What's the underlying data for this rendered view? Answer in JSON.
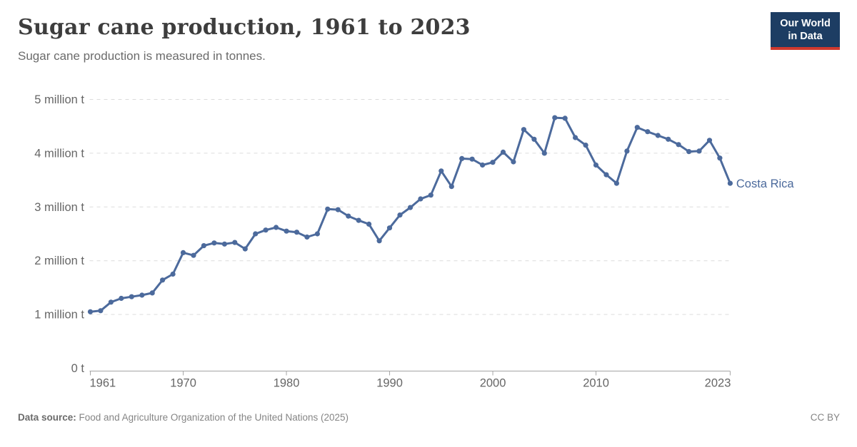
{
  "header": {
    "title": "Sugar cane production, 1961 to 2023",
    "subtitle": "Sugar cane production is measured in tonnes."
  },
  "logo": {
    "line1": "Our World",
    "line2": "in Data"
  },
  "footer": {
    "source_label": "Data source:",
    "source_text": " Food and Agriculture Organization of the United Nations (2025)",
    "license": "CC BY"
  },
  "colors": {
    "line": "#4C6A9C",
    "entity_label": "#4C6A9C",
    "grid": "#dcdcdc",
    "axis": "#a5a5a5",
    "tick_text": "#666666",
    "logo_bg": "#1d3d63",
    "logo_red": "#d0392e"
  },
  "chart_data": {
    "type": "line",
    "title": "Sugar cane production, 1961 to 2023",
    "ylabel": "",
    "xlabel": "",
    "unit": "million tonnes",
    "grid": "horizontal-dashed",
    "legend_position": "end-of-line-label",
    "xlim": [
      1961,
      2023
    ],
    "ylim": [
      0,
      5
    ],
    "x_ticks": [
      1961,
      1970,
      1980,
      1990,
      2000,
      2010,
      2023
    ],
    "y_ticks": [
      {
        "value": 0,
        "label": "0 t"
      },
      {
        "value": 1,
        "label": "1 million t"
      },
      {
        "value": 2,
        "label": "2 million t"
      },
      {
        "value": 3,
        "label": "3 million t"
      },
      {
        "value": 4,
        "label": "4 million t"
      },
      {
        "value": 5,
        "label": "5 million t"
      }
    ],
    "x": [
      1961,
      1962,
      1963,
      1964,
      1965,
      1966,
      1967,
      1968,
      1969,
      1970,
      1971,
      1972,
      1973,
      1974,
      1975,
      1976,
      1977,
      1978,
      1979,
      1980,
      1981,
      1982,
      1983,
      1984,
      1985,
      1986,
      1987,
      1988,
      1989,
      1990,
      1991,
      1992,
      1993,
      1994,
      1995,
      1996,
      1997,
      1998,
      1999,
      2000,
      2001,
      2002,
      2003,
      2004,
      2005,
      2006,
      2007,
      2008,
      2009,
      2010,
      2011,
      2012,
      2013,
      2014,
      2015,
      2016,
      2017,
      2018,
      2019,
      2020,
      2021,
      2022,
      2023
    ],
    "series": [
      {
        "name": "Costa Rica",
        "color": "#4C6A9C",
        "values": [
          1.05,
          1.07,
          1.23,
          1.3,
          1.33,
          1.36,
          1.4,
          1.64,
          1.75,
          2.15,
          2.1,
          2.28,
          2.33,
          2.31,
          2.34,
          2.22,
          2.5,
          2.57,
          2.62,
          2.55,
          2.53,
          2.44,
          2.5,
          2.96,
          2.95,
          2.83,
          2.75,
          2.68,
          2.37,
          2.61,
          2.85,
          2.99,
          3.15,
          3.22,
          3.67,
          3.38,
          3.9,
          3.89,
          3.78,
          3.83,
          4.02,
          3.84,
          4.44,
          4.26,
          4.0,
          4.66,
          4.65,
          4.29,
          4.15,
          3.78,
          3.6,
          3.44,
          4.04,
          4.48,
          4.4,
          4.33,
          4.26,
          4.16,
          4.03,
          4.04,
          4.24,
          3.91,
          3.44
        ]
      }
    ]
  }
}
